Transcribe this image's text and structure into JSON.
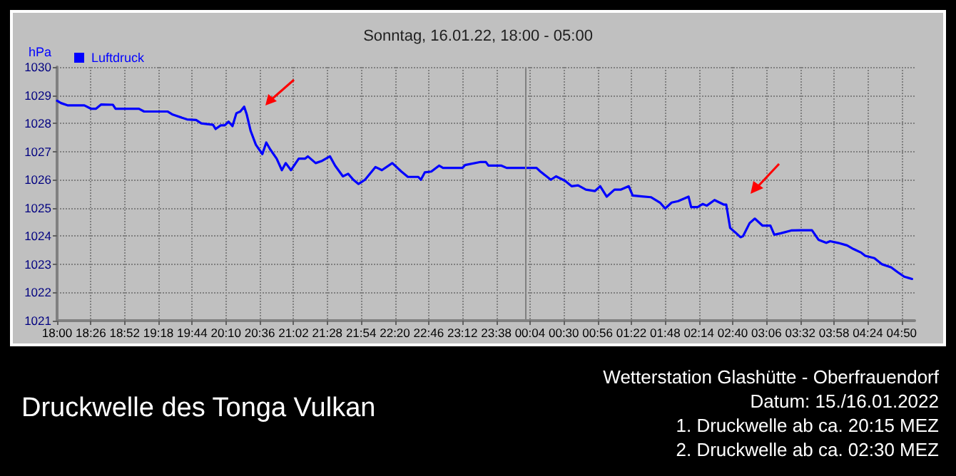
{
  "chart_data": {
    "type": "line",
    "title": "Druckwelle des Tonga Vulkan",
    "subtitle": "Sonntag, 16.01.22, 18:00 - 05:00",
    "ylabel": "hPa",
    "annotations": [
      "Wetterstation Glashütte - Oberfrauendorf",
      "Datum: 15./16.01.2022",
      "1. Druckwelle ab ca. 20:15 MEZ",
      "2. Druckwelle ab ca. 02:30 MEZ"
    ],
    "x": [
      "2022-01-15T18:00",
      "2022-01-15T18:03",
      "2022-01-15T18:08",
      "2022-01-15T18:21",
      "2022-01-15T18:26",
      "2022-01-15T18:30",
      "2022-01-15T18:34",
      "2022-01-15T18:43",
      "2022-01-15T18:45",
      "2022-01-15T19:03",
      "2022-01-15T19:07",
      "2022-01-15T19:25",
      "2022-01-15T19:29",
      "2022-01-15T19:40",
      "2022-01-15T19:47",
      "2022-01-15T19:51",
      "2022-01-15T20:00",
      "2022-01-15T20:02",
      "2022-01-15T20:06",
      "2022-01-15T20:09",
      "2022-01-15T20:12",
      "2022-01-15T20:15",
      "2022-01-15T20:18",
      "2022-01-15T20:21",
      "2022-01-15T20:24",
      "2022-01-15T20:26",
      "2022-01-15T20:29",
      "2022-01-15T20:33",
      "2022-01-15T20:38",
      "2022-01-15T20:41",
      "2022-01-15T20:44",
      "2022-01-15T20:49",
      "2022-01-15T20:53",
      "2022-01-15T20:56",
      "2022-01-15T21:00",
      "2022-01-15T21:06",
      "2022-01-15T21:11",
      "2022-01-15T21:13",
      "2022-01-15T21:19",
      "2022-01-15T21:24",
      "2022-01-15T21:30",
      "2022-01-15T21:34",
      "2022-01-15T21:40",
      "2022-01-15T21:44",
      "2022-01-15T21:48",
      "2022-01-15T21:52",
      "2022-01-15T21:57",
      "2022-01-15T22:05",
      "2022-01-15T22:10",
      "2022-01-15T22:18",
      "2022-01-15T22:25",
      "2022-01-15T22:30",
      "2022-01-15T22:38",
      "2022-01-15T22:40",
      "2022-01-15T22:43",
      "2022-01-15T22:48",
      "2022-01-15T22:54",
      "2022-01-15T22:57",
      "2022-01-15T23:12",
      "2022-01-15T23:14",
      "2022-01-15T23:26",
      "2022-01-15T23:30",
      "2022-01-15T23:32",
      "2022-01-15T23:42",
      "2022-01-15T23:46",
      "2022-01-15T23:57",
      "2022-01-16T00:09",
      "2022-01-16T00:12",
      "2022-01-16T00:20",
      "2022-01-16T00:24",
      "2022-01-16T00:31",
      "2022-01-16T00:36",
      "2022-01-16T00:41",
      "2022-01-16T00:47",
      "2022-01-16T00:54",
      "2022-01-16T00:58",
      "2022-01-16T01:03",
      "2022-01-16T01:09",
      "2022-01-16T01:14",
      "2022-01-16T01:20",
      "2022-01-16T01:23",
      "2022-01-16T01:30",
      "2022-01-16T01:37",
      "2022-01-16T01:44",
      "2022-01-16T01:48",
      "2022-01-16T01:53",
      "2022-01-16T01:58",
      "2022-01-16T02:06",
      "2022-01-16T02:08",
      "2022-01-16T02:13",
      "2022-01-16T02:17",
      "2022-01-16T02:20",
      "2022-01-16T02:26",
      "2022-01-16T02:33",
      "2022-01-16T02:35",
      "2022-01-16T02:38",
      "2022-01-16T02:42",
      "2022-01-16T02:46",
      "2022-01-16T02:48",
      "2022-01-16T02:53",
      "2022-01-16T02:57",
      "2022-01-16T03:03",
      "2022-01-16T03:09",
      "2022-01-16T03:12",
      "2022-01-16T03:17",
      "2022-01-16T03:25",
      "2022-01-16T03:32",
      "2022-01-16T03:41",
      "2022-01-16T03:46",
      "2022-01-16T03:52",
      "2022-01-16T03:55",
      "2022-01-16T04:01",
      "2022-01-16T04:08",
      "2022-01-16T04:13",
      "2022-01-16T04:19",
      "2022-01-16T04:22",
      "2022-01-16T04:29",
      "2022-01-16T04:35",
      "2022-01-16T04:42",
      "2022-01-16T04:47",
      "2022-01-16T04:52",
      "2022-01-16T04:58"
    ],
    "series": [
      {
        "name": "Luftdruck",
        "color": "#0000ff",
        "values": [
          1028.8,
          1028.72,
          1028.64,
          1028.64,
          1028.52,
          1028.52,
          1028.67,
          1028.66,
          1028.52,
          1028.52,
          1028.42,
          1028.42,
          1028.31,
          1028.14,
          1028.12,
          1028.0,
          1027.95,
          1027.8,
          1027.93,
          1027.93,
          1028.06,
          1027.9,
          1028.36,
          1028.42,
          1028.59,
          1028.31,
          1027.73,
          1027.24,
          1026.91,
          1027.32,
          1027.08,
          1026.75,
          1026.34,
          1026.59,
          1026.34,
          1026.75,
          1026.75,
          1026.83,
          1026.59,
          1026.67,
          1026.83,
          1026.5,
          1026.12,
          1026.21,
          1026.0,
          1025.85,
          1026.0,
          1026.45,
          1026.34,
          1026.59,
          1026.29,
          1026.1,
          1026.1,
          1026.0,
          1026.26,
          1026.29,
          1026.5,
          1026.42,
          1026.42,
          1026.52,
          1026.63,
          1026.63,
          1026.5,
          1026.5,
          1026.42,
          1026.42,
          1026.42,
          1026.29,
          1026.0,
          1026.12,
          1025.96,
          1025.77,
          1025.8,
          1025.65,
          1025.6,
          1025.77,
          1025.4,
          1025.65,
          1025.65,
          1025.77,
          1025.44,
          1025.41,
          1025.38,
          1025.19,
          1024.98,
          1025.19,
          1025.24,
          1025.4,
          1025.03,
          1025.03,
          1025.14,
          1025.08,
          1025.28,
          1025.12,
          1025.12,
          1024.29,
          1024.13,
          1023.96,
          1024.0,
          1024.46,
          1024.62,
          1024.37,
          1024.37,
          1024.05,
          1024.1,
          1024.2,
          1024.21,
          1024.21,
          1023.87,
          1023.76,
          1023.82,
          1023.76,
          1023.67,
          1023.54,
          1023.41,
          1023.3,
          1023.22,
          1023.0,
          1022.89,
          1022.72,
          1022.56,
          1022.48
        ]
      }
    ],
    "xlim": [
      "2022-01-15T18:00",
      "2022-01-16T05:00"
    ],
    "xticks": [
      {
        "value": "2022-01-15T18:00",
        "label": "18:00"
      },
      {
        "value": "2022-01-15T18:26",
        "label": "18:26"
      },
      {
        "value": "2022-01-15T18:52",
        "label": "18:52"
      },
      {
        "value": "2022-01-15T19:18",
        "label": "19:18"
      },
      {
        "value": "2022-01-15T19:44",
        "label": "19:44"
      },
      {
        "value": "2022-01-15T20:10",
        "label": "20:10"
      },
      {
        "value": "2022-01-15T20:36",
        "label": "20:36"
      },
      {
        "value": "2022-01-15T21:02",
        "label": "21:02"
      },
      {
        "value": "2022-01-15T21:28",
        "label": "21:28"
      },
      {
        "value": "2022-01-15T21:54",
        "label": "21:54"
      },
      {
        "value": "2022-01-15T22:20",
        "label": "22:20"
      },
      {
        "value": "2022-01-15T22:46",
        "label": "22:46"
      },
      {
        "value": "2022-01-15T23:12",
        "label": "23:12"
      },
      {
        "value": "2022-01-15T23:38",
        "label": "23:38"
      },
      {
        "value": "2022-01-16T00:04",
        "label": "00:04"
      },
      {
        "value": "2022-01-16T00:30",
        "label": "00:30"
      },
      {
        "value": "2022-01-16T00:56",
        "label": "00:56"
      },
      {
        "value": "2022-01-16T01:22",
        "label": "01:22"
      },
      {
        "value": "2022-01-16T01:48",
        "label": "01:48"
      },
      {
        "value": "2022-01-16T02:14",
        "label": "02:14"
      },
      {
        "value": "2022-01-16T02:40",
        "label": "02:40"
      },
      {
        "value": "2022-01-16T03:06",
        "label": "03:06"
      },
      {
        "value": "2022-01-16T03:32",
        "label": "03:32"
      },
      {
        "value": "2022-01-16T03:58",
        "label": "03:58"
      },
      {
        "value": "2022-01-16T04:24",
        "label": "04:24"
      },
      {
        "value": "2022-01-16T04:50",
        "label": "04:50"
      }
    ],
    "ylim": [
      1021,
      1030
    ],
    "yticks": [
      1021,
      1022,
      1023,
      1024,
      1025,
      1026,
      1027,
      1028,
      1029,
      1030
    ],
    "ref_lines": [
      {
        "axis": "x",
        "value": "2022-01-16T00:00",
        "color": "#808080",
        "line_style": "solid"
      }
    ],
    "grid": true,
    "legend": "top left",
    "marker": "none",
    "line_style": "solid"
  }
}
